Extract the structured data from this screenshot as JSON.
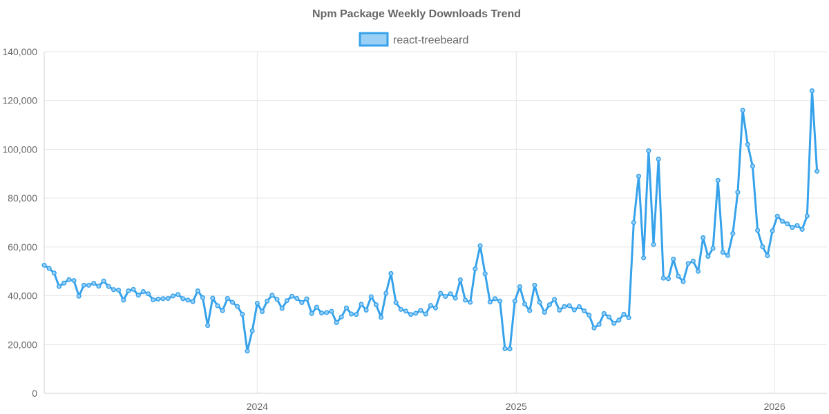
{
  "chart_data": {
    "type": "line",
    "title": "Npm Package Weekly Downloads Trend",
    "xlabel": "",
    "ylabel": "",
    "ylim": [
      0,
      140000
    ],
    "yticks": [
      0,
      20000,
      40000,
      60000,
      80000,
      100000,
      120000,
      140000
    ],
    "ytick_labels": [
      "0",
      "20,000",
      "40,000",
      "60,000",
      "80,000",
      "100,000",
      "120,000",
      "140,000"
    ],
    "xlim": [
      "2023-03-06",
      "2026-03-16"
    ],
    "xticks": [
      "2024-01-01",
      "2025-01-01",
      "2026-01-01"
    ],
    "xtick_labels": [
      "2024",
      "2025",
      "2026"
    ],
    "grid": true,
    "legend_position": "top-center",
    "series": [
      {
        "name": "react-treebeard",
        "color": "#36a2eb",
        "fill_color": "#9ad0f5",
        "start_date": "2023-03-06",
        "interval_days": 7,
        "values": [
          52500,
          51200,
          49300,
          43800,
          45200,
          46600,
          46200,
          39800,
          44300,
          44300,
          45100,
          43900,
          46000,
          43800,
          42500,
          42300,
          38200,
          42000,
          42600,
          40200,
          41700,
          40800,
          38300,
          38600,
          38800,
          38900,
          39900,
          40500,
          38800,
          38200,
          37600,
          42000,
          39200,
          27800,
          39000,
          35900,
          33900,
          38900,
          37300,
          35600,
          32400,
          17300,
          25600,
          36900,
          33500,
          37800,
          40200,
          38500,
          34800,
          38000,
          39800,
          38900,
          37200,
          38700,
          32700,
          35300,
          32900,
          33100,
          33600,
          29000,
          31300,
          35000,
          32500,
          32300,
          36500,
          34100,
          39600,
          36300,
          31100,
          41000,
          49100,
          37200,
          34400,
          33700,
          32300,
          32800,
          34000,
          32500,
          36000,
          35000,
          41000,
          39700,
          40800,
          39000,
          46500,
          38200,
          37300,
          51000,
          60500,
          49000,
          37400,
          38800,
          37800,
          18300,
          18200,
          37800,
          43700,
          36600,
          33900,
          44300,
          37300,
          33200,
          36300,
          38500,
          34100,
          35600,
          35900,
          34200,
          35500,
          33800,
          32000,
          26800,
          28200,
          32700,
          31300,
          28700,
          30000,
          32400,
          31000,
          70000,
          89000,
          55500,
          99400,
          61000,
          96000,
          47200,
          47000,
          55000,
          48000,
          45800,
          53200,
          54200,
          50000,
          63800,
          56100,
          59400,
          87300,
          57800,
          56500,
          65500,
          82400,
          116000,
          102000,
          93100,
          66800,
          60100,
          56400,
          66600,
          72600,
          70500,
          69500,
          68000,
          68800,
          67200,
          72700,
          124000,
          91000
        ]
      }
    ]
  }
}
